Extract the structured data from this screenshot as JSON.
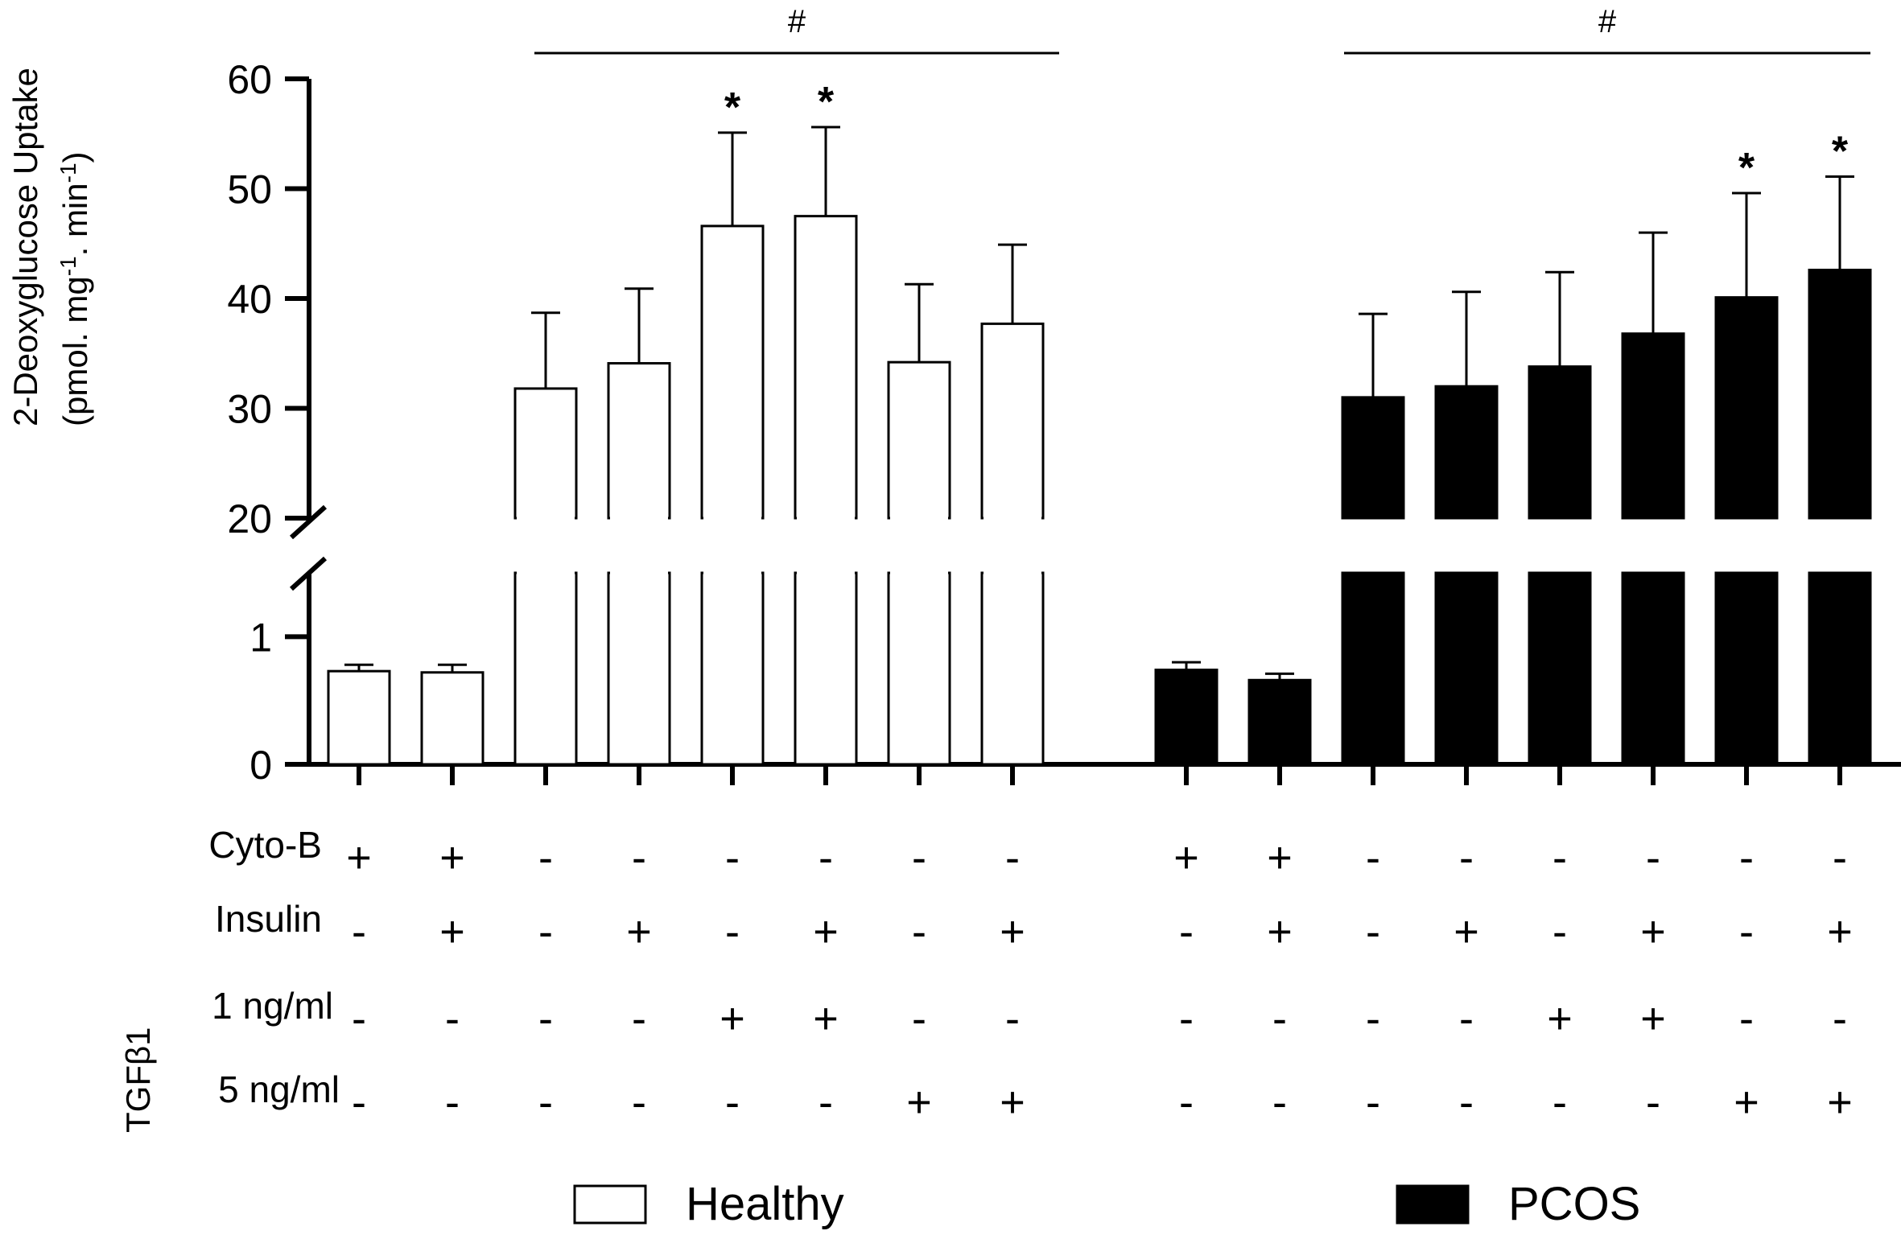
{
  "chart_data": {
    "type": "bar",
    "ylabel_line1": "2-Deoxyglucose Uptake",
    "ylabel_line2": "(pmol. mg",
    "ylabel_sup1": "-1",
    "ylabel_mid": ". min",
    "ylabel_sup2": "-1",
    "ylabel_end": ")",
    "axis_break": {
      "lower_range": [
        0,
        1.5
      ],
      "upper_range": [
        20,
        60
      ]
    },
    "yticks_lower": [
      "0",
      "1"
    ],
    "yticks_upper": [
      "20",
      "30",
      "40",
      "50",
      "60"
    ],
    "yticks_lower_values": [
      0,
      1
    ],
    "yticks_upper_values": [
      20,
      30,
      40,
      50,
      60
    ],
    "series": [
      {
        "name": "Healthy",
        "color": "#ffffff",
        "values": [
          0.73,
          0.72,
          31.8,
          34.1,
          46.6,
          47.5,
          34.2,
          37.7
        ],
        "errors": [
          0.05,
          0.06,
          6.9,
          6.8,
          8.5,
          8.1,
          7.1,
          7.2
        ],
        "significance": [
          "",
          "",
          "",
          "",
          "*",
          "*",
          "",
          ""
        ]
      },
      {
        "name": "PCOS",
        "color": "#000000",
        "values": [
          0.74,
          0.66,
          31.0,
          32.0,
          33.8,
          36.8,
          40.1,
          42.6
        ],
        "errors": [
          0.06,
          0.05,
          7.6,
          8.6,
          8.6,
          9.2,
          9.5,
          8.5
        ],
        "significance": [
          "",
          "",
          "",
          "",
          "",
          "",
          "*",
          "*"
        ]
      }
    ],
    "brackets": [
      {
        "label": "#",
        "series": "Healthy",
        "from_bar": 2,
        "to_bar": 7
      },
      {
        "label": "#",
        "series": "PCOS",
        "from_bar": 2,
        "to_bar": 7
      }
    ],
    "conditions": {
      "rows": [
        {
          "label": "Cyto-B",
          "values": [
            "+",
            "+",
            "-",
            "-",
            "-",
            "-",
            "-",
            "-"
          ]
        },
        {
          "label": "Insulin",
          "values": [
            "-",
            "+",
            "-",
            "+",
            "-",
            "+",
            "-",
            "+"
          ]
        },
        {
          "label": "1 ng/ml",
          "values": [
            "-",
            "-",
            "-",
            "-",
            "+",
            "+",
            "-",
            "-"
          ]
        },
        {
          "label": "5 ng/ml",
          "values": [
            "-",
            "-",
            "-",
            "-",
            "-",
            "-",
            "+",
            "+"
          ]
        }
      ],
      "group_label": "TGFβ1"
    },
    "legend": [
      {
        "label": "Healthy",
        "color": "#ffffff"
      },
      {
        "label": "PCOS",
        "color": "#000000"
      }
    ],
    "legend_position": "bottom"
  }
}
